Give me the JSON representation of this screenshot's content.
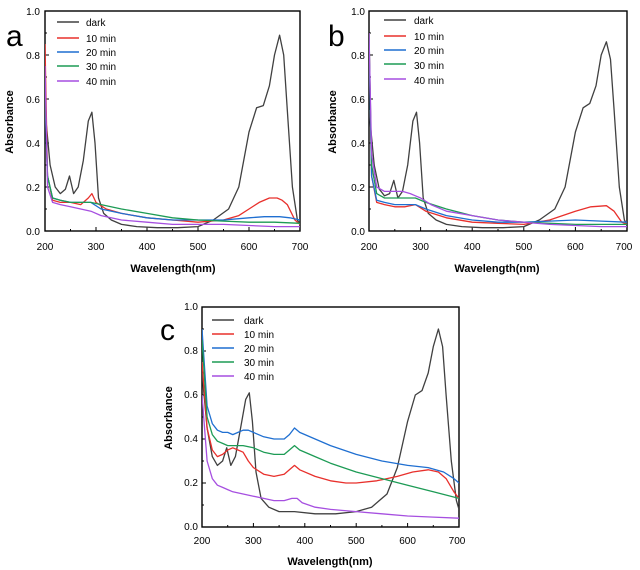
{
  "figure": {
    "colors": {
      "dark": "#404040",
      "10 min": "#e8302c",
      "20 min": "#1f6fd1",
      "30 min": "#1d9b55",
      "40 min": "#a64fe0"
    }
  },
  "chart_data": [
    {
      "type": "line",
      "panel": "a",
      "xlabel": "Wavelength(nm)",
      "ylabel": "Absorbance",
      "xlim": [
        200,
        700
      ],
      "ylim": [
        0,
        1.0
      ],
      "xticks": [
        "200",
        "300",
        "400",
        "500",
        "600",
        "700"
      ],
      "yticks": [
        "0.0",
        "0.2",
        "0.4",
        "0.6",
        "0.8",
        "1.0"
      ],
      "legend": [
        "dark",
        "10 min",
        "20 min",
        "30 min",
        "40 min"
      ],
      "legend_position": "top-left",
      "series": [
        {
          "name": "dark",
          "x": [
            200,
            210,
            220,
            230,
            240,
            248,
            256,
            265,
            275,
            285,
            292,
            298,
            305,
            315,
            330,
            350,
            380,
            420,
            460,
            500,
            530,
            560,
            580,
            600,
            615,
            628,
            640,
            650,
            660,
            668,
            675,
            685,
            695,
            700
          ],
          "y": [
            0.55,
            0.3,
            0.2,
            0.17,
            0.19,
            0.25,
            0.17,
            0.2,
            0.32,
            0.5,
            0.54,
            0.4,
            0.15,
            0.08,
            0.05,
            0.03,
            0.02,
            0.015,
            0.015,
            0.02,
            0.05,
            0.1,
            0.2,
            0.45,
            0.56,
            0.57,
            0.66,
            0.8,
            0.89,
            0.8,
            0.55,
            0.2,
            0.05,
            0.03
          ]
        },
        {
          "name": "10 min",
          "x": [
            200,
            205,
            215,
            230,
            250,
            270,
            285,
            292,
            300,
            320,
            350,
            400,
            450,
            500,
            550,
            580,
            600,
            620,
            640,
            655,
            665,
            675,
            690,
            700
          ],
          "y": [
            0.85,
            0.25,
            0.14,
            0.13,
            0.13,
            0.12,
            0.15,
            0.17,
            0.13,
            0.1,
            0.08,
            0.06,
            0.05,
            0.04,
            0.05,
            0.07,
            0.1,
            0.13,
            0.15,
            0.15,
            0.14,
            0.12,
            0.05,
            0.03
          ]
        },
        {
          "name": "20 min",
          "x": [
            200,
            205,
            215,
            230,
            250,
            270,
            290,
            310,
            350,
            400,
            450,
            500,
            550,
            600,
            630,
            660,
            680,
            700
          ],
          "y": [
            0.6,
            0.25,
            0.15,
            0.14,
            0.13,
            0.13,
            0.13,
            0.1,
            0.08,
            0.06,
            0.05,
            0.05,
            0.05,
            0.06,
            0.065,
            0.065,
            0.06,
            0.05
          ]
        },
        {
          "name": "30 min",
          "x": [
            200,
            205,
            215,
            230,
            250,
            270,
            290,
            310,
            350,
            400,
            450,
            500,
            550,
            600,
            650,
            700
          ],
          "y": [
            0.65,
            0.25,
            0.15,
            0.14,
            0.13,
            0.13,
            0.13,
            0.12,
            0.1,
            0.08,
            0.06,
            0.05,
            0.045,
            0.04,
            0.04,
            0.035
          ]
        },
        {
          "name": "40 min",
          "x": [
            200,
            205,
            215,
            230,
            250,
            270,
            290,
            310,
            350,
            400,
            450,
            500,
            550,
            600,
            650,
            700
          ],
          "y": [
            0.75,
            0.2,
            0.13,
            0.12,
            0.11,
            0.1,
            0.09,
            0.07,
            0.05,
            0.04,
            0.03,
            0.03,
            0.03,
            0.025,
            0.02,
            0.02
          ]
        }
      ]
    },
    {
      "type": "line",
      "panel": "b",
      "xlabel": "Wavelength(nm)",
      "ylabel": "Absorbance",
      "xlim": [
        200,
        700
      ],
      "ylim": [
        0,
        1.0
      ],
      "xticks": [
        "200",
        "300",
        "400",
        "500",
        "600",
        "700"
      ],
      "yticks": [
        "0.0",
        "0.2",
        "0.4",
        "0.6",
        "0.8",
        "1.0"
      ],
      "legend": [
        "dark",
        "10 min",
        "20 min",
        "30 min",
        "40 min"
      ],
      "legend_position": "top-center",
      "series": [
        {
          "name": "dark",
          "x": [
            200,
            210,
            220,
            230,
            240,
            248,
            256,
            265,
            275,
            285,
            292,
            298,
            305,
            315,
            330,
            350,
            380,
            420,
            460,
            500,
            530,
            560,
            580,
            600,
            615,
            628,
            640,
            650,
            660,
            668,
            675,
            685,
            695,
            700
          ],
          "y": [
            0.55,
            0.3,
            0.19,
            0.16,
            0.17,
            0.23,
            0.15,
            0.18,
            0.3,
            0.5,
            0.54,
            0.4,
            0.15,
            0.08,
            0.05,
            0.03,
            0.02,
            0.015,
            0.015,
            0.02,
            0.05,
            0.1,
            0.2,
            0.45,
            0.56,
            0.58,
            0.66,
            0.8,
            0.86,
            0.78,
            0.55,
            0.2,
            0.05,
            0.03
          ]
        },
        {
          "name": "10 min",
          "x": [
            200,
            205,
            215,
            230,
            250,
            270,
            290,
            310,
            350,
            400,
            450,
            500,
            550,
            600,
            630,
            660,
            675,
            690,
            700
          ],
          "y": [
            0.9,
            0.25,
            0.13,
            0.12,
            0.11,
            0.11,
            0.12,
            0.09,
            0.06,
            0.04,
            0.035,
            0.03,
            0.05,
            0.09,
            0.11,
            0.115,
            0.09,
            0.04,
            0.03
          ]
        },
        {
          "name": "20 min",
          "x": [
            200,
            205,
            215,
            230,
            250,
            270,
            290,
            310,
            350,
            400,
            450,
            500,
            550,
            600,
            650,
            700
          ],
          "y": [
            0.85,
            0.25,
            0.14,
            0.13,
            0.12,
            0.12,
            0.12,
            0.1,
            0.07,
            0.05,
            0.04,
            0.04,
            0.045,
            0.05,
            0.045,
            0.04
          ]
        },
        {
          "name": "30 min",
          "x": [
            200,
            205,
            215,
            230,
            250,
            270,
            290,
            310,
            350,
            400,
            450,
            500,
            550,
            600,
            650,
            700
          ],
          "y": [
            0.9,
            0.3,
            0.17,
            0.15,
            0.15,
            0.15,
            0.15,
            0.13,
            0.1,
            0.07,
            0.05,
            0.04,
            0.035,
            0.03,
            0.03,
            0.03
          ]
        },
        {
          "name": "40 min",
          "x": [
            200,
            205,
            215,
            230,
            250,
            265,
            280,
            290,
            300,
            320,
            350,
            400,
            450,
            500,
            550,
            600,
            650,
            700
          ],
          "y": [
            0.9,
            0.35,
            0.2,
            0.18,
            0.18,
            0.18,
            0.17,
            0.16,
            0.15,
            0.12,
            0.09,
            0.07,
            0.05,
            0.04,
            0.03,
            0.025,
            0.02,
            0.02
          ]
        }
      ]
    },
    {
      "type": "line",
      "panel": "c",
      "xlabel": "Wavelength(nm)",
      "ylabel": "Absorbance",
      "xlim": [
        200,
        700
      ],
      "ylim": [
        0,
        1.0
      ],
      "xticks": [
        "200",
        "300",
        "400",
        "500",
        "600",
        "700"
      ],
      "yticks": [
        "0.0",
        "0.2",
        "0.4",
        "0.6",
        "0.8",
        "1.0"
      ],
      "legend": [
        "dark",
        "10 min",
        "20 min",
        "30 min",
        "40 min"
      ],
      "legend_position": "top-left",
      "series": [
        {
          "name": "dark",
          "x": [
            200,
            210,
            220,
            230,
            240,
            248,
            256,
            265,
            275,
            285,
            292,
            298,
            305,
            315,
            330,
            350,
            380,
            420,
            460,
            500,
            530,
            560,
            580,
            600,
            615,
            628,
            640,
            650,
            660,
            668,
            675,
            685,
            695,
            700
          ],
          "y": [
            0.7,
            0.45,
            0.32,
            0.28,
            0.3,
            0.36,
            0.28,
            0.32,
            0.45,
            0.58,
            0.61,
            0.48,
            0.25,
            0.13,
            0.09,
            0.07,
            0.07,
            0.06,
            0.06,
            0.07,
            0.09,
            0.15,
            0.27,
            0.48,
            0.6,
            0.62,
            0.7,
            0.82,
            0.9,
            0.82,
            0.6,
            0.3,
            0.12,
            0.08
          ]
        },
        {
          "name": "10 min",
          "x": [
            200,
            210,
            220,
            230,
            240,
            250,
            260,
            270,
            280,
            290,
            300,
            320,
            340,
            360,
            370,
            380,
            390,
            420,
            450,
            480,
            500,
            540,
            580,
            610,
            640,
            660,
            675,
            690,
            700
          ],
          "y": [
            0.75,
            0.45,
            0.35,
            0.32,
            0.33,
            0.35,
            0.36,
            0.35,
            0.34,
            0.3,
            0.27,
            0.24,
            0.23,
            0.24,
            0.26,
            0.28,
            0.26,
            0.23,
            0.21,
            0.2,
            0.2,
            0.21,
            0.23,
            0.25,
            0.26,
            0.25,
            0.22,
            0.16,
            0.13
          ]
        },
        {
          "name": "20 min",
          "x": [
            200,
            210,
            220,
            230,
            240,
            250,
            260,
            270,
            280,
            290,
            300,
            320,
            340,
            360,
            370,
            380,
            390,
            420,
            450,
            500,
            550,
            600,
            640,
            670,
            690,
            700
          ],
          "y": [
            0.9,
            0.55,
            0.47,
            0.44,
            0.43,
            0.43,
            0.42,
            0.43,
            0.44,
            0.44,
            0.43,
            0.41,
            0.4,
            0.4,
            0.42,
            0.45,
            0.43,
            0.4,
            0.37,
            0.33,
            0.3,
            0.28,
            0.27,
            0.25,
            0.22,
            0.2
          ]
        },
        {
          "name": "30 min",
          "x": [
            200,
            210,
            220,
            230,
            240,
            250,
            260,
            280,
            300,
            320,
            340,
            360,
            370,
            380,
            390,
            420,
            450,
            500,
            550,
            600,
            650,
            700
          ],
          "y": [
            0.85,
            0.5,
            0.42,
            0.39,
            0.38,
            0.37,
            0.37,
            0.37,
            0.36,
            0.34,
            0.33,
            0.33,
            0.35,
            0.37,
            0.35,
            0.32,
            0.29,
            0.25,
            0.22,
            0.19,
            0.16,
            0.13
          ]
        },
        {
          "name": "40 min",
          "x": [
            200,
            210,
            220,
            230,
            240,
            250,
            260,
            280,
            300,
            320,
            340,
            360,
            375,
            385,
            395,
            420,
            450,
            500,
            550,
            600,
            650,
            700
          ],
          "y": [
            0.6,
            0.3,
            0.22,
            0.19,
            0.18,
            0.17,
            0.16,
            0.15,
            0.14,
            0.13,
            0.12,
            0.12,
            0.13,
            0.13,
            0.11,
            0.09,
            0.08,
            0.07,
            0.06,
            0.05,
            0.045,
            0.04
          ]
        }
      ]
    }
  ]
}
